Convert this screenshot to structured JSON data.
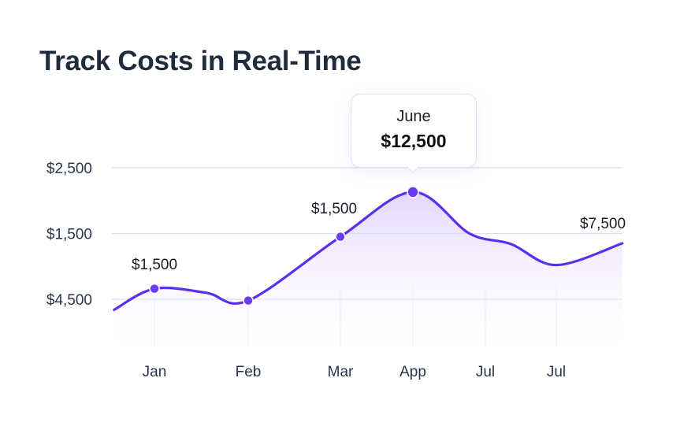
{
  "chart_data": {
    "type": "area",
    "title": "Track Costs in Real-Time",
    "xlabel": "",
    "ylabel": "",
    "categories": [
      "Jan",
      "Feb",
      "Mar",
      "App",
      "Jul",
      "Jul"
    ],
    "y_ticks": [
      {
        "label": "$4,500",
        "level": 0
      },
      {
        "label": "$1,500",
        "level": 1
      },
      {
        "label": "$2,500",
        "level": 2
      }
    ],
    "series": [
      {
        "curve_levels": [
          {
            "x": -0.43,
            "y": -0.16
          },
          {
            "x": 0,
            "y": 0.16
          },
          {
            "x": 0.55,
            "y": 0.1
          },
          {
            "x": 1,
            "y": -0.02
          },
          {
            "x": 2,
            "y": 0.95
          },
          {
            "x": 3,
            "y": 1.63
          },
          {
            "x": 3.78,
            "y": 1.0
          },
          {
            "x": 4.36,
            "y": 0.84
          },
          {
            "x": 5,
            "y": 0.52
          },
          {
            "x": 5.92,
            "y": 0.85
          }
        ],
        "markers_at": [
          0,
          1,
          2,
          3
        ]
      }
    ],
    "data_labels": [
      {
        "at": "Jan",
        "text": "$1,500"
      },
      {
        "at": "Mar",
        "text": "$1,500"
      },
      {
        "at": "end",
        "text": "$7,500"
      }
    ],
    "tooltip": {
      "month": "June",
      "value": "$12,500"
    },
    "grid": true,
    "legend": "none",
    "colors": {
      "line": "#5b2ff0",
      "marker": "#6a3cf5",
      "grid": "#d3e1fb",
      "fill": "#e6dcfb"
    }
  }
}
